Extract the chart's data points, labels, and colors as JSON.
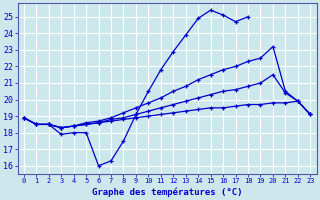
{
  "xlabel": "Graphe des températures (°C)",
  "bg_color": "#cce8ec",
  "grid_color": "#ffffff",
  "line_color": "#0000cc",
  "x_hours": [
    0,
    1,
    2,
    3,
    4,
    5,
    6,
    7,
    8,
    9,
    10,
    11,
    12,
    13,
    14,
    15,
    16,
    17,
    18,
    19,
    20,
    21,
    22,
    23
  ],
  "ylim": [
    15.5,
    25.8
  ],
  "yticks": [
    16,
    17,
    18,
    19,
    20,
    21,
    22,
    23,
    24,
    25
  ],
  "curve1": [
    18.9,
    18.5,
    18.5,
    17.9,
    18.0,
    18.0,
    16.0,
    16.3,
    17.5,
    19.1,
    20.5,
    21.8,
    22.9,
    23.9,
    24.9,
    25.4,
    25.1,
    24.7,
    25.0,
    null,
    null,
    null,
    null,
    null
  ],
  "curve2": [
    18.9,
    18.5,
    18.5,
    18.3,
    18.4,
    18.6,
    18.7,
    18.9,
    19.2,
    19.5,
    19.8,
    20.1,
    20.5,
    20.8,
    21.2,
    21.5,
    21.8,
    22.0,
    22.3,
    22.5,
    23.2,
    20.5,
    19.9,
    19.1
  ],
  "curve3": [
    18.9,
    18.5,
    18.5,
    18.3,
    18.4,
    18.5,
    18.6,
    18.8,
    18.9,
    19.1,
    19.3,
    19.5,
    19.7,
    19.9,
    20.1,
    20.3,
    20.5,
    20.6,
    20.8,
    21.0,
    21.5,
    20.4,
    19.9,
    19.1
  ],
  "curve4": [
    18.9,
    18.5,
    18.5,
    18.3,
    18.4,
    18.5,
    18.6,
    18.7,
    18.8,
    18.9,
    19.0,
    19.1,
    19.2,
    19.3,
    19.4,
    19.5,
    19.5,
    19.6,
    19.7,
    19.7,
    19.8,
    19.8,
    19.9,
    19.1
  ]
}
